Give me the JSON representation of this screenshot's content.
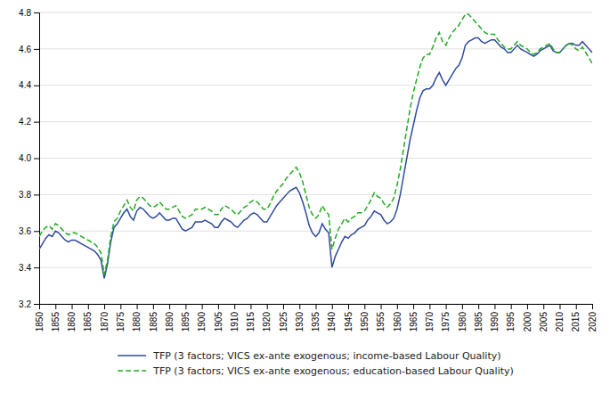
{
  "chart_data": {
    "type": "line",
    "x": [
      1850,
      1851,
      1852,
      1853,
      1854,
      1855,
      1856,
      1857,
      1858,
      1859,
      1860,
      1861,
      1862,
      1863,
      1864,
      1865,
      1866,
      1867,
      1868,
      1869,
      1870,
      1871,
      1872,
      1873,
      1874,
      1875,
      1876,
      1877,
      1878,
      1879,
      1880,
      1881,
      1882,
      1883,
      1884,
      1885,
      1886,
      1887,
      1888,
      1889,
      1890,
      1891,
      1892,
      1893,
      1894,
      1895,
      1896,
      1897,
      1898,
      1899,
      1900,
      1901,
      1902,
      1903,
      1904,
      1905,
      1906,
      1907,
      1908,
      1909,
      1910,
      1911,
      1912,
      1913,
      1914,
      1915,
      1916,
      1917,
      1918,
      1919,
      1920,
      1921,
      1922,
      1923,
      1924,
      1925,
      1926,
      1927,
      1928,
      1929,
      1930,
      1931,
      1932,
      1933,
      1934,
      1935,
      1936,
      1937,
      1938,
      1939,
      1940,
      1941,
      1942,
      1943,
      1944,
      1945,
      1946,
      1947,
      1948,
      1949,
      1950,
      1951,
      1952,
      1953,
      1954,
      1955,
      1956,
      1957,
      1958,
      1959,
      1960,
      1961,
      1962,
      1963,
      1964,
      1965,
      1966,
      1967,
      1968,
      1969,
      1970,
      1971,
      1972,
      1973,
      1974,
      1975,
      1976,
      1977,
      1978,
      1979,
      1980,
      1981,
      1982,
      1983,
      1984,
      1985,
      1986,
      1987,
      1988,
      1989,
      1990,
      1991,
      1992,
      1993,
      1994,
      1995,
      1996,
      1997,
      1998,
      1999,
      2000,
      2001,
      2002,
      2003,
      2004,
      2005,
      2006,
      2007,
      2008,
      2009,
      2010,
      2011,
      2012,
      2013,
      2014,
      2015,
      2016,
      2017,
      2018,
      2019,
      2020
    ],
    "series": [
      {
        "name": "TFP (3 factors; VICS ex-ante exogenous; income-based Labour Quality)",
        "color": "#2e4a9e",
        "line_style": "solid",
        "values": [
          3.5,
          3.53,
          3.56,
          3.58,
          3.57,
          3.6,
          3.59,
          3.57,
          3.55,
          3.54,
          3.55,
          3.55,
          3.54,
          3.53,
          3.52,
          3.51,
          3.5,
          3.49,
          3.47,
          3.44,
          3.34,
          3.42,
          3.54,
          3.62,
          3.64,
          3.67,
          3.7,
          3.72,
          3.68,
          3.66,
          3.71,
          3.73,
          3.72,
          3.7,
          3.68,
          3.67,
          3.68,
          3.7,
          3.68,
          3.66,
          3.66,
          3.67,
          3.67,
          3.64,
          3.61,
          3.6,
          3.61,
          3.62,
          3.65,
          3.65,
          3.65,
          3.66,
          3.65,
          3.64,
          3.62,
          3.62,
          3.65,
          3.67,
          3.66,
          3.65,
          3.63,
          3.62,
          3.64,
          3.66,
          3.67,
          3.69,
          3.7,
          3.69,
          3.67,
          3.65,
          3.65,
          3.68,
          3.71,
          3.74,
          3.76,
          3.78,
          3.8,
          3.82,
          3.83,
          3.84,
          3.81,
          3.76,
          3.7,
          3.63,
          3.59,
          3.57,
          3.59,
          3.64,
          3.61,
          3.59,
          3.4,
          3.46,
          3.5,
          3.54,
          3.57,
          3.56,
          3.58,
          3.59,
          3.61,
          3.62,
          3.63,
          3.66,
          3.68,
          3.71,
          3.7,
          3.69,
          3.66,
          3.64,
          3.65,
          3.67,
          3.72,
          3.8,
          3.9,
          4.0,
          4.1,
          4.18,
          4.26,
          4.33,
          4.37,
          4.38,
          4.38,
          4.4,
          4.44,
          4.47,
          4.43,
          4.4,
          4.43,
          4.46,
          4.49,
          4.51,
          4.55,
          4.62,
          4.64,
          4.65,
          4.66,
          4.66,
          4.64,
          4.63,
          4.64,
          4.65,
          4.65,
          4.63,
          4.61,
          4.6,
          4.58,
          4.58,
          4.6,
          4.62,
          4.6,
          4.59,
          4.58,
          4.57,
          4.56,
          4.57,
          4.59,
          4.6,
          4.61,
          4.62,
          4.59,
          4.58,
          4.58,
          4.6,
          4.62,
          4.63,
          4.63,
          4.62,
          4.62,
          4.64,
          4.62,
          4.6,
          4.58
        ]
      },
      {
        "name": "TFP (3 factors; VICS ex-ante exogenous; education-based Labour Quality)",
        "color": "#22aa22",
        "line_style": "dashed",
        "values": [
          3.57,
          3.6,
          3.62,
          3.63,
          3.61,
          3.64,
          3.63,
          3.61,
          3.59,
          3.58,
          3.59,
          3.59,
          3.58,
          3.57,
          3.56,
          3.55,
          3.54,
          3.53,
          3.51,
          3.48,
          3.36,
          3.44,
          3.57,
          3.65,
          3.67,
          3.71,
          3.74,
          3.77,
          3.73,
          3.71,
          3.77,
          3.79,
          3.78,
          3.76,
          3.74,
          3.73,
          3.74,
          3.76,
          3.74,
          3.72,
          3.72,
          3.73,
          3.74,
          3.71,
          3.68,
          3.67,
          3.68,
          3.69,
          3.72,
          3.72,
          3.72,
          3.73,
          3.72,
          3.71,
          3.69,
          3.69,
          3.72,
          3.74,
          3.73,
          3.72,
          3.7,
          3.69,
          3.71,
          3.73,
          3.74,
          3.76,
          3.77,
          3.76,
          3.74,
          3.72,
          3.72,
          3.75,
          3.79,
          3.82,
          3.84,
          3.86,
          3.89,
          3.91,
          3.93,
          3.95,
          3.92,
          3.87,
          3.8,
          3.73,
          3.69,
          3.67,
          3.69,
          3.74,
          3.71,
          3.69,
          3.5,
          3.56,
          3.61,
          3.64,
          3.67,
          3.65,
          3.67,
          3.68,
          3.7,
          3.7,
          3.71,
          3.74,
          3.77,
          3.81,
          3.79,
          3.78,
          3.75,
          3.73,
          3.75,
          3.78,
          3.85,
          3.94,
          4.05,
          4.16,
          4.27,
          4.36,
          4.43,
          4.5,
          4.55,
          4.57,
          4.57,
          4.61,
          4.66,
          4.69,
          4.64,
          4.62,
          4.66,
          4.69,
          4.71,
          4.73,
          4.76,
          4.79,
          4.79,
          4.77,
          4.75,
          4.73,
          4.71,
          4.69,
          4.68,
          4.68,
          4.68,
          4.65,
          4.63,
          4.61,
          4.6,
          4.6,
          4.62,
          4.64,
          4.62,
          4.61,
          4.6,
          4.58,
          4.57,
          4.58,
          4.6,
          4.61,
          4.62,
          4.63,
          4.6,
          4.58,
          4.58,
          4.6,
          4.62,
          4.63,
          4.62,
          4.6,
          4.59,
          4.61,
          4.58,
          4.55,
          4.52
        ]
      }
    ],
    "xlim": [
      1850,
      2020
    ],
    "xticks": [
      1850,
      1855,
      1860,
      1865,
      1870,
      1875,
      1880,
      1885,
      1890,
      1895,
      1900,
      1905,
      1910,
      1915,
      1920,
      1925,
      1930,
      1935,
      1940,
      1945,
      1950,
      1955,
      1960,
      1965,
      1970,
      1975,
      1980,
      1985,
      1990,
      1995,
      2000,
      2005,
      2010,
      2015,
      2020
    ],
    "ylim": [
      3.2,
      4.8
    ],
    "yticks": [
      3.2,
      3.4,
      3.6,
      3.8,
      {
        "value": 4,
        "label": "4.0"
      },
      4.2,
      4.4,
      4.6,
      4.8
    ],
    "grid": true,
    "legend": "bottom"
  }
}
